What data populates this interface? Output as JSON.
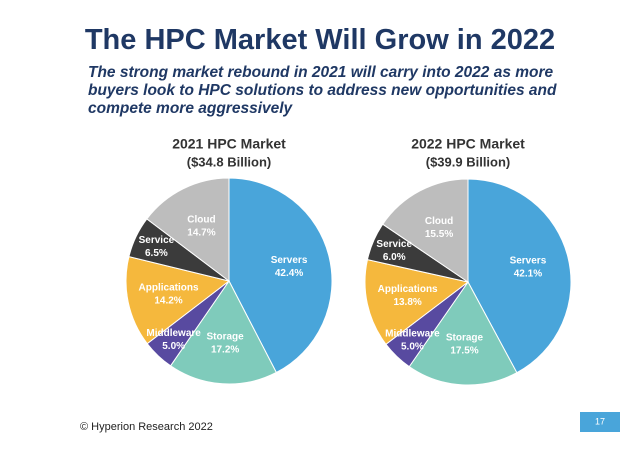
{
  "header": {
    "title": "The HPC Market Will Grow in 2022",
    "subtitle": "The strong market rebound in 2021 will carry into 2022 as more buyers look to HPC solutions to address new opportunities and compete more aggressively"
  },
  "chart_data": [
    {
      "type": "pie",
      "title": "2021 HPC Market",
      "subtitle": "($34.8 Billion)",
      "categories": [
        "Servers",
        "Storage",
        "Middleware",
        "Applications",
        "Service",
        "Cloud"
      ],
      "values": [
        42.4,
        17.2,
        5,
        14.2,
        6.5,
        14.7
      ],
      "value_labels": [
        "42.4%",
        "17.2%",
        "5.0%",
        "14.2%",
        "6.5%",
        "14.7%"
      ],
      "colors": [
        "#49a5da",
        "#7fcbbb",
        "#584aa0",
        "#f5b83d",
        "#3b3b3b",
        "#bdbdbd"
      ]
    },
    {
      "type": "pie",
      "title": "2022 HPC Market",
      "subtitle": "($39.9 Billion)",
      "categories": [
        "Servers",
        "Storage",
        "Middleware",
        "Applications",
        "Service",
        "Cloud"
      ],
      "values": [
        42.1,
        17.5,
        5,
        13.8,
        6,
        15.5
      ],
      "value_labels": [
        "42.1%",
        "17.5%",
        "5.0%",
        "13.8%",
        "6.0%",
        "15.5%"
      ],
      "colors": [
        "#49a5da",
        "#7fcbbb",
        "#584aa0",
        "#f5b83d",
        "#3b3b3b",
        "#bdbdbd"
      ]
    }
  ],
  "footer": {
    "copyright": "© Hyperion Research 2022",
    "page_number": "17"
  }
}
